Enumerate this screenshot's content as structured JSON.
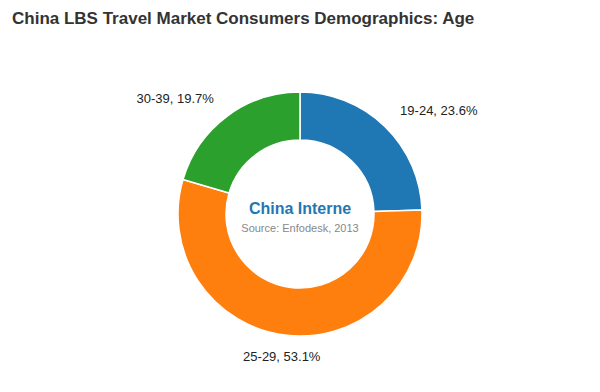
{
  "chart_data": {
    "type": "pie",
    "title": "China LBS Travel Market Consumers Demographics: Age",
    "values": [
      23.6,
      53.1,
      19.7
    ],
    "value_labels": [
      "19-24, 23.6%",
      "25-29, 53.1%",
      "30-39, 19.7%"
    ],
    "data_labels": true,
    "annotations": [
      "China Interne",
      "Source: Enfodesk, 2013"
    ]
  }
}
